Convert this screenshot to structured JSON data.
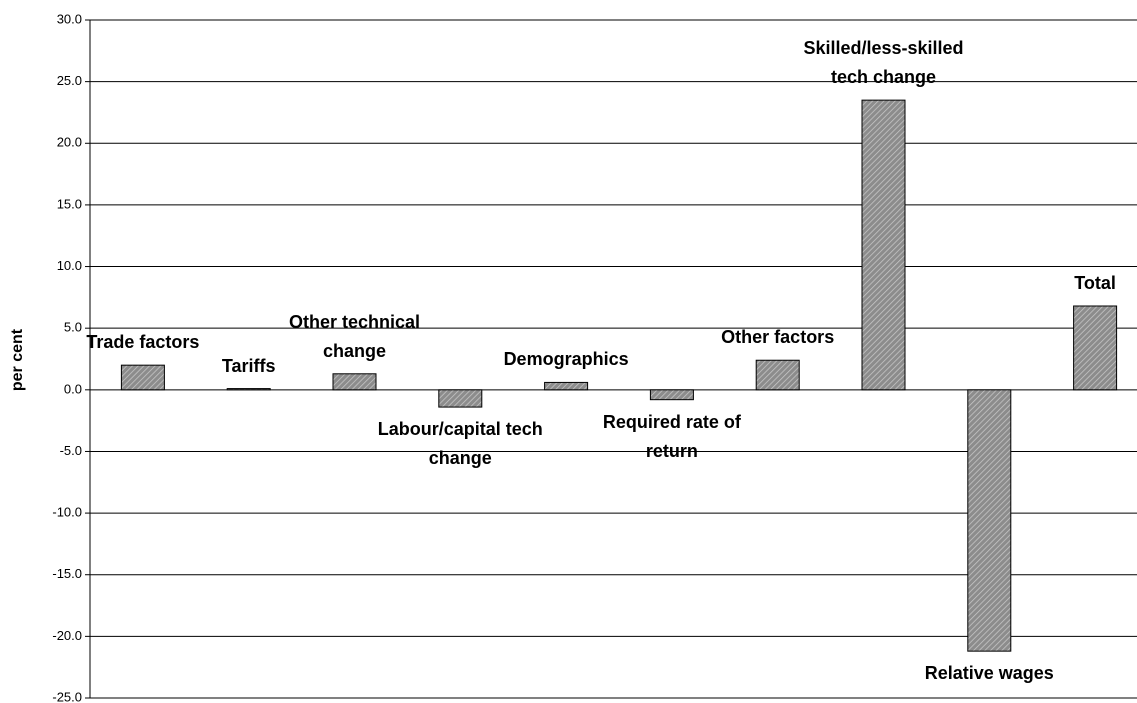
{
  "chart_data": {
    "type": "bar",
    "y_label": "per cent",
    "categories": [
      "Trade factors",
      "Tariffs",
      "Other technical change",
      "Labour/capital tech change",
      "Demographics",
      "Required rate of return",
      "Other factors",
      "Skilled/less-skilled tech change",
      "Relative wages",
      "Total"
    ],
    "values": [
      2.0,
      0.1,
      1.3,
      -1.4,
      0.6,
      -0.8,
      2.4,
      23.5,
      -21.2,
      6.8
    ],
    "color": "#8c8c8c",
    "ylim": [
      -25,
      30
    ],
    "yticks": [
      {
        "value": -25,
        "label": "-25.0"
      },
      {
        "value": -20,
        "label": "-20.0"
      },
      {
        "value": -15,
        "label": "-15.0"
      },
      {
        "value": -10,
        "label": "-10.0"
      },
      {
        "value": -5,
        "label": "-5.0"
      },
      {
        "value": 0,
        "label": "0.0"
      },
      {
        "value": 5,
        "label": "5.0"
      },
      {
        "value": 10,
        "label": "10.0"
      },
      {
        "value": 15,
        "label": "15.0"
      },
      {
        "value": 20,
        "label": "20.0"
      },
      {
        "value": 25,
        "label": "25.0"
      },
      {
        "value": 30,
        "label": "30.0"
      }
    ],
    "grid": true
  }
}
